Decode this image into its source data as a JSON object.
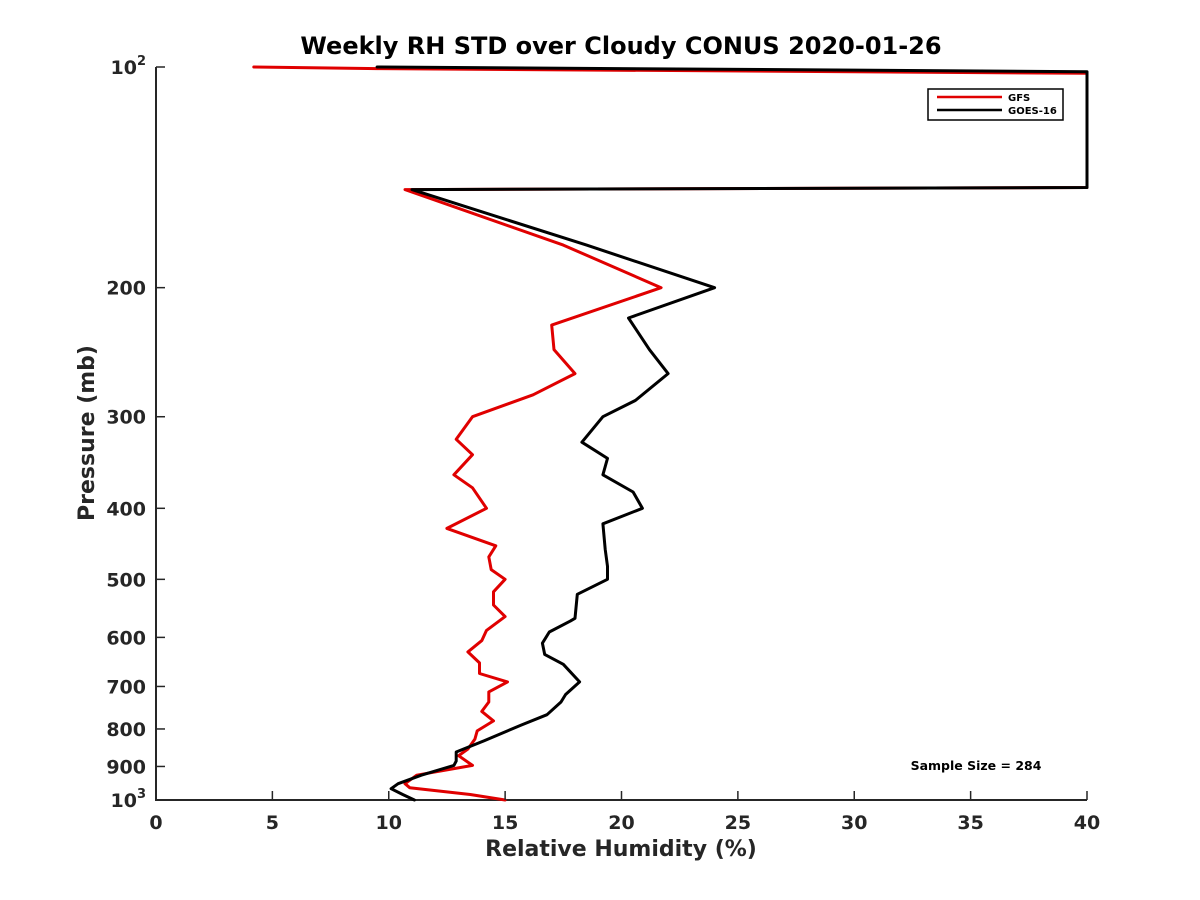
{
  "chart_data": {
    "type": "line",
    "title": "Weekly RH STD over Cloudy CONUS 2020-01-26",
    "xlabel": "Relative Humidity (%)",
    "ylabel": "Pressure (mb)",
    "xlim": [
      0,
      40
    ],
    "ylim": [
      100,
      1000
    ],
    "y_scale": "log",
    "y_reversed": true,
    "grid": false,
    "legend_position": "top-right",
    "x_ticks": [
      0,
      5,
      10,
      15,
      20,
      25,
      30,
      35,
      40
    ],
    "x_tick_labels": [
      "0",
      "5",
      "10",
      "15",
      "20",
      "25",
      "30",
      "35",
      "40"
    ],
    "y_ticks": [
      100,
      200,
      300,
      400,
      500,
      600,
      700,
      800,
      900,
      1000
    ],
    "y_tick_labels": [
      {
        "base": "10",
        "sup": "2"
      },
      {
        "base": "200",
        "sup": ""
      },
      {
        "base": "300",
        "sup": ""
      },
      {
        "base": "400",
        "sup": ""
      },
      {
        "base": "500",
        "sup": ""
      },
      {
        "base": "600",
        "sup": ""
      },
      {
        "base": "700",
        "sup": ""
      },
      {
        "base": "800",
        "sup": ""
      },
      {
        "base": "900",
        "sup": ""
      },
      {
        "base": "10",
        "sup": "3"
      }
    ],
    "annotation": "Sample Size = 284",
    "series": [
      {
        "name": "GFS",
        "color": "#e00000",
        "points": [
          [
            4.2,
            100
          ],
          [
            9.5,
            100.5
          ],
          [
            40,
            102
          ],
          [
            40,
            146
          ],
          [
            10.7,
            147
          ],
          [
            17.5,
            175
          ],
          [
            21.7,
            200
          ],
          [
            17.0,
            225
          ],
          [
            17.1,
            243
          ],
          [
            18.0,
            262
          ],
          [
            16.2,
            280
          ],
          [
            13.6,
            300
          ],
          [
            12.9,
            322
          ],
          [
            13.6,
            338
          ],
          [
            12.8,
            360
          ],
          [
            13.6,
            375
          ],
          [
            14.2,
            400
          ],
          [
            12.5,
            426
          ],
          [
            14.6,
            450
          ],
          [
            14.3,
            466
          ],
          [
            14.4,
            485
          ],
          [
            15.0,
            500
          ],
          [
            14.5,
            520
          ],
          [
            14.5,
            542
          ],
          [
            15.0,
            562
          ],
          [
            14.2,
            587
          ],
          [
            14.0,
            606
          ],
          [
            13.4,
            628
          ],
          [
            13.9,
            650
          ],
          [
            13.9,
            672
          ],
          [
            15.1,
            690
          ],
          [
            14.3,
            712
          ],
          [
            14.3,
            735
          ],
          [
            14.0,
            757
          ],
          [
            14.5,
            780
          ],
          [
            13.8,
            805
          ],
          [
            13.7,
            826
          ],
          [
            13.4,
            852
          ],
          [
            13.0,
            870
          ],
          [
            13.6,
            897
          ],
          [
            11.2,
            925
          ],
          [
            10.7,
            950
          ],
          [
            10.9,
            962
          ],
          [
            13.5,
            983
          ],
          [
            15.0,
            1000
          ]
        ]
      },
      {
        "name": "GOES-16",
        "color": "#000000",
        "points": [
          [
            9.5,
            100
          ],
          [
            40,
            101.5
          ],
          [
            40,
            146
          ],
          [
            11.0,
            147
          ],
          [
            18.5,
            175
          ],
          [
            24.0,
            200
          ],
          [
            20.3,
            220
          ],
          [
            21.2,
            243
          ],
          [
            22.0,
            262
          ],
          [
            20.6,
            285
          ],
          [
            19.2,
            300
          ],
          [
            18.3,
            325
          ],
          [
            19.4,
            342
          ],
          [
            19.2,
            360
          ],
          [
            20.5,
            380
          ],
          [
            20.9,
            400
          ],
          [
            19.2,
            420
          ],
          [
            19.3,
            455
          ],
          [
            19.4,
            480
          ],
          [
            19.4,
            500
          ],
          [
            18.1,
            524
          ],
          [
            18.0,
            565
          ],
          [
            17.8,
            570
          ],
          [
            16.9,
            590
          ],
          [
            16.6,
            611
          ],
          [
            16.7,
            633
          ],
          [
            17.5,
            653
          ],
          [
            18.2,
            690
          ],
          [
            17.6,
            718
          ],
          [
            17.4,
            735
          ],
          [
            16.8,
            765
          ],
          [
            15.7,
            790
          ],
          [
            14.1,
            830
          ],
          [
            12.9,
            860
          ],
          [
            12.9,
            885
          ],
          [
            12.8,
            897
          ],
          [
            11.4,
            925
          ],
          [
            10.4,
            950
          ],
          [
            10.1,
            965
          ],
          [
            10.6,
            983
          ],
          [
            11.1,
            1000
          ]
        ]
      }
    ]
  }
}
